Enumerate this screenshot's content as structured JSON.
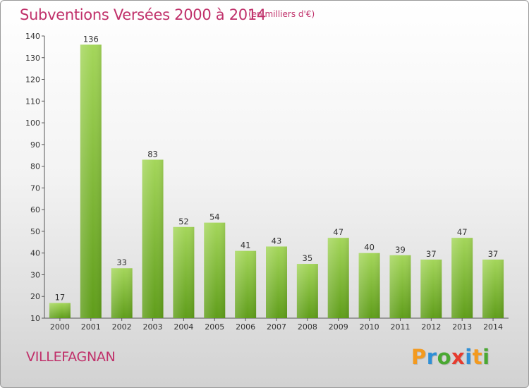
{
  "chart_data": {
    "type": "bar",
    "title": "Subventions Versées 2000 à 2014",
    "subtitle": "(en milliers d'€)",
    "categories": [
      "2000",
      "2001",
      "2002",
      "2003",
      "2004",
      "2005",
      "2006",
      "2007",
      "2008",
      "2009",
      "2010",
      "2011",
      "2012",
      "2013",
      "2014"
    ],
    "values": [
      17,
      136,
      33,
      83,
      52,
      54,
      41,
      43,
      35,
      47,
      40,
      39,
      37,
      47,
      37
    ],
    "ylim": [
      10,
      140
    ],
    "yticks": [
      10,
      20,
      30,
      40,
      50,
      60,
      70,
      80,
      90,
      100,
      110,
      120,
      130,
      140
    ],
    "grid": false,
    "bar_color": "#7dbb2e"
  },
  "commune": "VILLEFAGNAN",
  "logo": {
    "letters": [
      "P",
      "r",
      "o",
      "x",
      "i",
      "t",
      "i"
    ],
    "colors": [
      "#f39a1f",
      "#2f8fd6",
      "#4aa832",
      "#e63b2e",
      "#2f8fd6",
      "#f39a1f",
      "#4aa832"
    ]
  }
}
